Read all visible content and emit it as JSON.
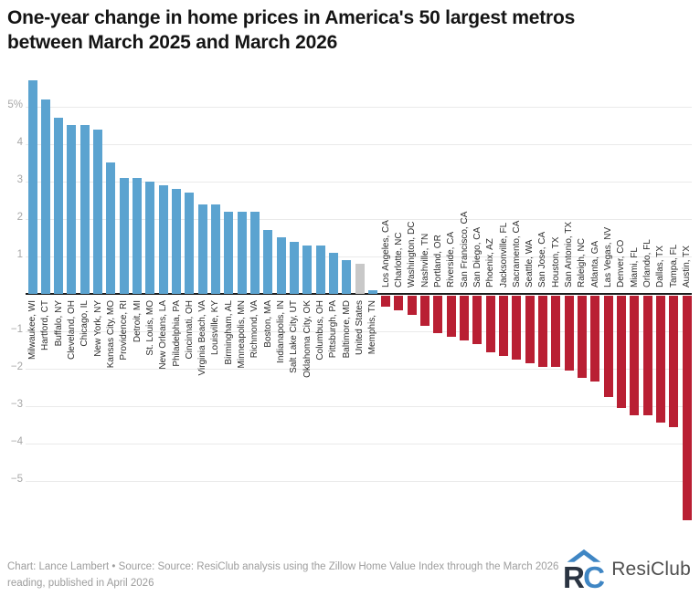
{
  "title": {
    "line1": "One-year change in home prices in America's 50 largest metros",
    "line2": "between March 2025 and March 2026"
  },
  "footer": {
    "credit_line1": "Chart: Lance Lambert • Source: Source: ResiClub analysis using the Zillow Home Value Index through the March 2026",
    "credit_line2": "reading, published in April 2026",
    "logo_text": "ResiClub"
  },
  "chart_data": {
    "type": "bar",
    "title": "One-year change in home prices in America's 50 largest metros between March 2025 and March 2026",
    "value_unit": "%",
    "categories": [
      "Milwaukee, WI",
      "Hartford, CT",
      "Buffalo, NY",
      "Cleveland, OH",
      "Chicago, IL",
      "New York, NY",
      "Kansas City, MO",
      "Providence, RI",
      "Detroit, MI",
      "St. Louis, MO",
      "New Orleans, LA",
      "Philadelphia, PA",
      "Cincinnati, OH",
      "Virginia Beach, VA",
      "Louisville, KY",
      "Birmingham, AL",
      "Minneapolis, MN",
      "Richmond, VA",
      "Boston, MA",
      "Indianapolis, IN",
      "Salt Lake City, UT",
      "Oklahoma City, OK",
      "Columbus, OH",
      "Pittsburgh, PA",
      "Baltimore, MD",
      "United States",
      "Memphis, TN",
      "Los Angeles, CA",
      "Charlotte, NC",
      "Washington, DC",
      "Nashville, TN",
      "Portland, OR",
      "Riverside, CA",
      "San Francisco, CA",
      "San Diego, CA",
      "Phoenix, AZ",
      "Jacksonville, FL",
      "Sacramento, CA",
      "Seattle, WA",
      "San Jose, CA",
      "Houston, TX",
      "San Antonio, TX",
      "Raleigh, NC",
      "Atlanta, GA",
      "Las Vegas, NV",
      "Denver, CO",
      "Miami, FL",
      "Orlando, FL",
      "Dallas, TX",
      "Tampa, FL",
      "Austin, TX"
    ],
    "values": [
      5.7,
      5.2,
      4.7,
      4.5,
      4.5,
      4.4,
      3.5,
      3.1,
      3.1,
      3.0,
      2.9,
      2.8,
      2.7,
      2.4,
      2.4,
      2.2,
      2.2,
      2.2,
      1.7,
      1.5,
      1.4,
      1.3,
      1.3,
      1.1,
      0.9,
      0.8,
      0.1,
      -0.3,
      -0.4,
      -0.5,
      -0.8,
      -1.0,
      -1.1,
      -1.2,
      -1.3,
      -1.5,
      -1.6,
      -1.7,
      -1.8,
      -1.9,
      -1.9,
      -2.0,
      -2.2,
      -2.3,
      -2.7,
      -3.0,
      -3.2,
      -3.2,
      -3.4,
      -3.5,
      -6.0
    ],
    "highlight_category": "United States",
    "yticks": [
      5,
      4,
      3,
      2,
      1,
      -1,
      -2,
      -3,
      -4,
      -5
    ],
    "ytick_labels": [
      "5%",
      "4",
      "3",
      "2",
      "1",
      "−1",
      "−2",
      "−3",
      "−4",
      "−5"
    ],
    "ylim": [
      -6.3,
      5.9
    ],
    "xlabel": "",
    "ylabel": "",
    "grid": true,
    "legend": "none",
    "label_rotation": -90,
    "colors": {
      "positive": "#5ba3d0",
      "negative": "#b91f33",
      "neutral": "#c8c8c8",
      "axis": "#1c1c1c",
      "gridline": "#eaeaea",
      "tick_text": "#a8a8a8"
    }
  }
}
